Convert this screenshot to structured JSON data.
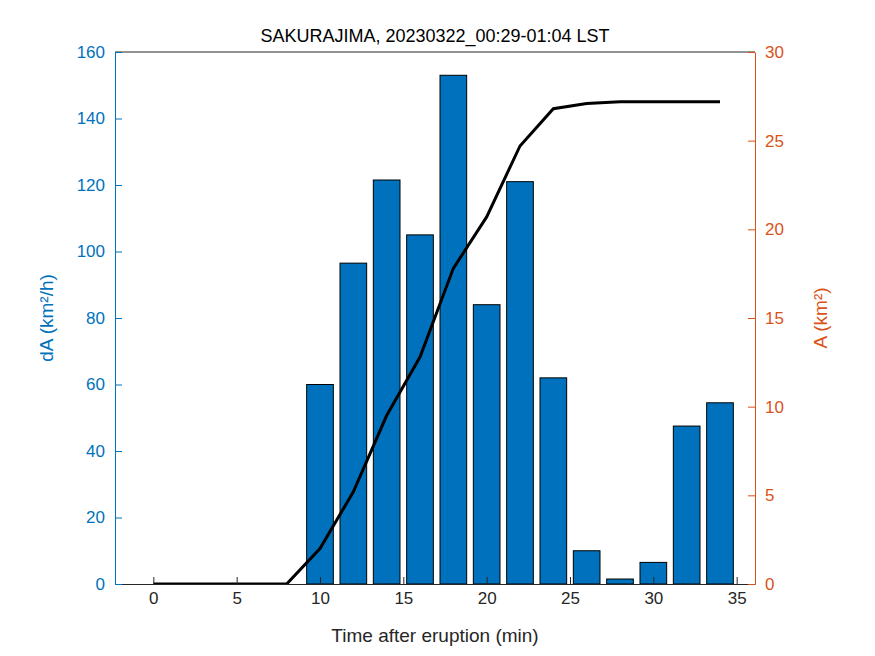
{
  "chart_data": {
    "type": "bar",
    "title": "SAKURAJIMA, 20230322_00:29-01:04 LST",
    "x_label": "Time after eruption (min)",
    "y_label": "dA (km²/h)",
    "y2_label": "A (km²)",
    "x": [
      0,
      2,
      4,
      6,
      8,
      10,
      12,
      14,
      16,
      18,
      20,
      22,
      24,
      26,
      28,
      30,
      32,
      34
    ],
    "series": [
      {
        "type": "bar",
        "color": "#0072bd",
        "values": [
          0,
          0,
          0,
          0,
          0,
          60,
          96.5,
          121.5,
          105,
          153,
          84,
          121,
          62,
          10,
          1.5,
          6.5,
          47.5,
          54.5
        ]
      },
      {
        "type": "line",
        "axis": "y2",
        "color": "#000000",
        "values": [
          0,
          0,
          0,
          0,
          0,
          2.0,
          5.2,
          9.5,
          12.8,
          17.8,
          20.7,
          24.7,
          26.8,
          27.1,
          27.2,
          27.2,
          27.2,
          27.2
        ]
      }
    ],
    "xlim": [
      -2.3,
      36.1
    ],
    "xticks": [
      0,
      5,
      10,
      15,
      20,
      25,
      30,
      35
    ],
    "ylim": [
      0,
      160
    ],
    "yticks": [
      0,
      20,
      40,
      60,
      80,
      100,
      120,
      140,
      160
    ],
    "y2lim": [
      0,
      30
    ],
    "y2ticks": [
      0,
      5,
      10,
      15,
      20,
      25,
      30
    ],
    "grid": false
  }
}
